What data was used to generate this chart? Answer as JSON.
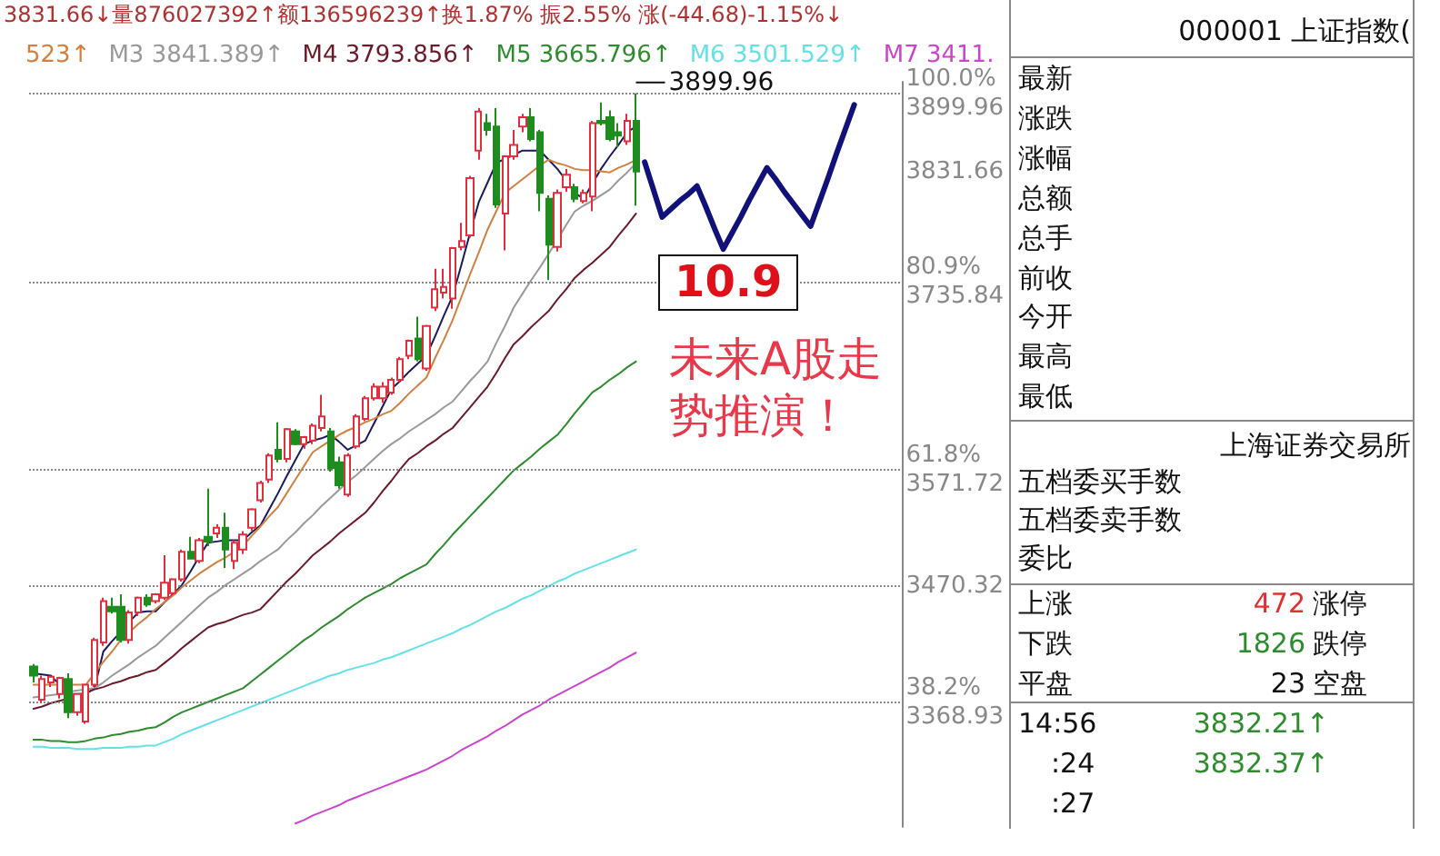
{
  "chart_data": [
    {
      "type": "candlestick",
      "subtitle": "3831.66↓量876027392↑额136596239↑换1.87% 振2.55% 涨(-44.68)-1.15%↓",
      "categories": [
        null,
        null,
        null,
        null,
        null,
        null,
        null,
        null,
        null,
        null,
        null,
        null,
        null,
        null,
        null,
        null,
        null,
        null,
        null,
        null,
        null,
        null,
        null,
        null,
        null,
        null,
        null,
        null,
        null,
        null,
        null,
        null,
        null,
        null,
        null,
        null,
        null,
        null,
        null,
        null,
        null,
        null,
        null,
        null,
        null,
        null,
        null,
        null,
        null,
        null,
        null,
        null,
        null,
        null,
        null,
        null,
        null,
        null,
        null,
        null,
        null,
        null,
        null,
        null,
        null,
        null,
        null,
        null,
        null,
        null,
        null,
        null,
        null,
        null,
        null,
        null,
        null,
        null,
        null,
        null,
        null,
        null,
        null,
        null,
        null,
        null,
        null,
        null,
        null,
        null,
        null,
        null,
        null,
        null,
        null,
        null,
        null,
        null,
        null,
        null
      ],
      "ohlc": [
        [
          3400,
          3402,
          3386,
          3392
        ],
        [
          3371,
          3392,
          3368,
          3389
        ],
        [
          3386,
          3392,
          3382,
          3391
        ],
        [
          3376,
          3391,
          3372,
          3390
        ],
        [
          3389,
          3394,
          3355,
          3360
        ],
        [
          3360,
          3376,
          3357,
          3376
        ],
        [
          3352,
          3384,
          3350,
          3384
        ],
        [
          3384,
          3425,
          3382,
          3423
        ],
        [
          3421,
          3460,
          3418,
          3457
        ],
        [
          3452,
          3460,
          3446,
          3448
        ],
        [
          3452,
          3463,
          3421,
          3423
        ],
        [
          3423,
          3449,
          3420,
          3447
        ],
        [
          3447,
          3461,
          3444,
          3460
        ],
        [
          3460,
          3463,
          3452,
          3454
        ],
        [
          3457,
          3464,
          3455,
          3463
        ],
        [
          3460,
          3497,
          3458,
          3473
        ],
        [
          3464,
          3477,
          3462,
          3476
        ],
        [
          3476,
          3502,
          3474,
          3500
        ],
        [
          3500,
          3513,
          3494,
          3494
        ],
        [
          3492,
          3512,
          3490,
          3510
        ],
        [
          3513,
          3555,
          3505,
          3509
        ],
        [
          3516,
          3524,
          3512,
          3521
        ],
        [
          3521,
          3534,
          3486,
          3502
        ],
        [
          3492,
          3510,
          3485,
          3508
        ],
        [
          3502,
          3518,
          3498,
          3515
        ],
        [
          3521,
          3538,
          3518,
          3537
        ],
        [
          3545,
          3562,
          3543,
          3560
        ],
        [
          3563,
          3586,
          3560,
          3584
        ],
        [
          3589,
          3613,
          3578,
          3581
        ],
        [
          3581,
          3608,
          3578,
          3607
        ],
        [
          3605,
          3607,
          3593,
          3594
        ],
        [
          3594,
          3601,
          3590,
          3600
        ],
        [
          3597,
          3612,
          3594,
          3610
        ],
        [
          3608,
          3637,
          3605,
          3618
        ],
        [
          3605,
          3608,
          3570,
          3573
        ],
        [
          3578,
          3583,
          3555,
          3558
        ],
        [
          3550,
          3586,
          3548,
          3584
        ],
        [
          3592,
          3620,
          3590,
          3618
        ],
        [
          3616,
          3636,
          3614,
          3634
        ],
        [
          3634,
          3647,
          3632,
          3644
        ],
        [
          3634,
          3648,
          3630,
          3644
        ],
        [
          3639,
          3652,
          3637,
          3650
        ],
        [
          3650,
          3670,
          3648,
          3668
        ],
        [
          3671,
          3685,
          3668,
          3684
        ],
        [
          3686,
          3705,
          3666,
          3668
        ],
        [
          3660,
          3698,
          3658,
          3697
        ],
        [
          3713,
          3747,
          3710,
          3729
        ],
        [
          3726,
          3747,
          3721,
          3731
        ],
        [
          3721,
          3766,
          3712,
          3765
        ],
        [
          3766,
          3787,
          3763,
          3771
        ],
        [
          3776,
          3828,
          3774,
          3826
        ],
        [
          3850,
          3887,
          3842,
          3884
        ],
        [
          3874,
          3882,
          3863,
          3868
        ],
        [
          3871,
          3887,
          3800,
          3803
        ],
        [
          3795,
          3846,
          3763,
          3845
        ],
        [
          3845,
          3868,
          3842,
          3855
        ],
        [
          3871,
          3882,
          3866,
          3879
        ],
        [
          3879,
          3887,
          3858,
          3860
        ],
        [
          3866,
          3868,
          3797,
          3813
        ],
        [
          3808,
          3811,
          3737,
          3768
        ],
        [
          3766,
          3816,
          3762,
          3813
        ],
        [
          3818,
          3834,
          3814,
          3829
        ],
        [
          3818,
          3821,
          3805,
          3808
        ],
        [
          3806,
          3816,
          3804,
          3813
        ],
        [
          3810,
          3876,
          3797,
          3874
        ],
        [
          3876,
          3892,
          3872,
          3874
        ],
        [
          3879,
          3885,
          3858,
          3860
        ],
        [
          3866,
          3874,
          3853,
          3863
        ],
        [
          3858,
          3882,
          3855,
          3876
        ],
        [
          3876,
          3899.96,
          3802,
          3831.66
        ],
        null,
        null,
        null,
        null,
        null,
        null,
        null,
        null,
        null,
        null,
        null,
        null,
        null,
        null,
        null,
        null,
        null,
        null,
        null,
        null,
        null,
        null,
        null,
        null,
        null,
        null,
        null,
        null,
        null,
        null
      ],
      "series": [
        {
          "type": "line",
          "color": "#1a1a5e",
          "values": [
            3394,
            3393,
            3392,
            3384,
            3376,
            3376,
            3376,
            3381,
            3413,
            3422,
            3430,
            3439,
            3447,
            3448,
            3448,
            3456,
            3463,
            3471,
            3483,
            3496,
            3508,
            3509,
            3510,
            3510,
            3510,
            3517,
            3523,
            3537,
            3551,
            3566,
            3580,
            3594,
            3597,
            3599,
            3602,
            3596,
            3589,
            3593,
            3597,
            3612,
            3627,
            3642,
            3649,
            3657,
            3664,
            3671,
            3688,
            3706,
            3723,
            3750,
            3778,
            3805,
            3822,
            3839,
            3843,
            3846,
            3850,
            3850,
            3850,
            3842,
            3834,
            3824,
            3813,
            3808,
            3821,
            3834,
            3845,
            3855,
            3866,
            3871,
            null,
            null,
            null,
            null,
            null,
            null,
            null,
            null,
            null,
            null,
            null,
            null,
            null,
            null,
            null,
            null,
            null,
            null,
            null,
            null,
            null,
            null,
            null,
            null,
            null,
            null,
            null,
            null,
            null,
            null
          ]
        },
        {
          "type": "line",
          "name": "523↑",
          "color": "#d08040",
          "values": [
            3384,
            3384,
            3384,
            3384,
            3384,
            3384,
            3384,
            3394,
            3404,
            3413,
            3423,
            3430,
            3437,
            3443,
            3450,
            3456,
            3462,
            3469,
            3475,
            3481,
            3486,
            3491,
            3495,
            3500,
            3505,
            3514,
            3522,
            3531,
            3539,
            3551,
            3563,
            3575,
            3587,
            3592,
            3597,
            3602,
            3606,
            3609,
            3613,
            3616,
            3620,
            3623,
            3630,
            3638,
            3645,
            3652,
            3669,
            3685,
            3702,
            3722,
            3742,
            3761,
            3781,
            3797,
            3813,
            3819,
            3825,
            3831,
            3837,
            3842,
            3839,
            3837,
            3834,
            3833,
            3833,
            3832,
            3831,
            3835,
            3838,
            3842,
            null,
            null,
            null,
            null,
            null,
            null,
            null,
            null,
            null,
            null,
            null,
            null,
            null,
            null,
            null,
            null,
            null,
            null,
            null,
            null,
            null,
            null,
            null,
            null,
            null,
            null,
            null,
            null,
            null,
            null
          ]
        },
        {
          "type": "line",
          "name": "M3 3841.389↑",
          "color": "#999999",
          "values": [
            3373,
            3374,
            3375,
            3376,
            3378,
            3379,
            3380,
            3381,
            3386,
            3392,
            3397,
            3402,
            3408,
            3413,
            3418,
            3425,
            3432,
            3439,
            3446,
            3453,
            3460,
            3465,
            3471,
            3476,
            3481,
            3486,
            3492,
            3497,
            3502,
            3510,
            3517,
            3525,
            3532,
            3540,
            3547,
            3554,
            3561,
            3567,
            3574,
            3581,
            3588,
            3594,
            3599,
            3605,
            3610,
            3615,
            3620,
            3626,
            3631,
            3640,
            3649,
            3657,
            3666,
            3682,
            3697,
            3713,
            3725,
            3737,
            3748,
            3760,
            3772,
            3785,
            3797,
            3802,
            3806,
            3811,
            3816,
            3824,
            3831,
            3839,
            null,
            null,
            null,
            null,
            null,
            null,
            null,
            null,
            null,
            null,
            null,
            null,
            null,
            null,
            null,
            null,
            null,
            null,
            null,
            null,
            null,
            null,
            null,
            null,
            null,
            null,
            null,
            null,
            null,
            null
          ]
        },
        {
          "type": "line",
          "name": "M4 3793.856↑",
          "color": "#6b1a2a",
          "values": [
            3363,
            3365,
            3368,
            3370,
            3372,
            3375,
            3377,
            3380,
            3382,
            3385,
            3387,
            3390,
            3392,
            3395,
            3397,
            3403,
            3409,
            3416,
            3422,
            3428,
            3434,
            3437,
            3439,
            3442,
            3445,
            3447,
            3450,
            3458,
            3466,
            3474,
            3481,
            3489,
            3497,
            3503,
            3509,
            3516,
            3522,
            3528,
            3534,
            3543,
            3553,
            3562,
            3572,
            3581,
            3586,
            3592,
            3597,
            3603,
            3608,
            3617,
            3626,
            3635,
            3644,
            3656,
            3669,
            3681,
            3688,
            3696,
            3703,
            3710,
            3720,
            3729,
            3739,
            3746,
            3752,
            3759,
            3766,
            3776,
            3785,
            3795,
            null,
            null,
            null,
            null,
            null,
            null,
            null,
            null,
            null,
            null,
            null,
            null,
            null,
            null,
            null,
            null,
            null,
            null,
            null,
            null,
            null,
            null,
            null,
            null,
            null,
            null,
            null,
            null,
            null,
            null
          ]
        },
        {
          "type": "line",
          "name": "M5 3665.796↑",
          "color": "#2e8b2e",
          "values": [
            3336,
            3336,
            3335,
            3335,
            3334,
            3334,
            3335,
            3337,
            3338,
            3340,
            3341,
            3343,
            3344,
            3346,
            3347,
            3351,
            3356,
            3360,
            3363,
            3366,
            3369,
            3372,
            3375,
            3378,
            3381,
            3387,
            3393,
            3399,
            3405,
            3411,
            3417,
            3423,
            3428,
            3434,
            3439,
            3444,
            3450,
            3455,
            3460,
            3464,
            3468,
            3472,
            3477,
            3481,
            3485,
            3489,
            3498,
            3506,
            3515,
            3523,
            3531,
            3539,
            3547,
            3555,
            3563,
            3571,
            3577,
            3583,
            3590,
            3596,
            3602,
            3611,
            3621,
            3630,
            3639,
            3644,
            3650,
            3655,
            3661,
            3666,
            null,
            null,
            null,
            null,
            null,
            null,
            null,
            null,
            null,
            null,
            null,
            null,
            null,
            null,
            null,
            null,
            null,
            null,
            null,
            null,
            null,
            null,
            null,
            null,
            null,
            null,
            null,
            null,
            null,
            null
          ]
        },
        {
          "type": "line",
          "name": "M6 3501.529↑",
          "color": "#66e0e8",
          "values": [
            3330,
            3330,
            3329,
            3329,
            3329,
            3328,
            3328,
            3328,
            3329,
            3329,
            3329,
            3330,
            3330,
            3331,
            3331,
            3334,
            3337,
            3341,
            3344,
            3347,
            3350,
            3353,
            3356,
            3359,
            3362,
            3365,
            3368,
            3371,
            3374,
            3377,
            3380,
            3383,
            3386,
            3389,
            3392,
            3394,
            3397,
            3399,
            3401,
            3403,
            3406,
            3408,
            3411,
            3414,
            3417,
            3420,
            3423,
            3426,
            3429,
            3433,
            3436,
            3440,
            3444,
            3448,
            3451,
            3455,
            3459,
            3462,
            3466,
            3470,
            3474,
            3477,
            3481,
            3484,
            3487,
            3490,
            3493,
            3496,
            3499,
            3502,
            null,
            null,
            null,
            null,
            null,
            null,
            null,
            null,
            null,
            null,
            null,
            null,
            null,
            null,
            null,
            null,
            null,
            null,
            null,
            null,
            null,
            null,
            null,
            null,
            null,
            null,
            null,
            null,
            null,
            null
          ]
        },
        {
          "type": "line",
          "name": "M7 3411.",
          "color": "#cc44cc",
          "values": [
            null,
            null,
            null,
            null,
            null,
            null,
            null,
            null,
            null,
            null,
            null,
            null,
            null,
            null,
            null,
            null,
            null,
            null,
            null,
            null,
            null,
            null,
            null,
            null,
            null,
            null,
            null,
            null,
            null,
            null,
            3263,
            3266,
            3270,
            3273,
            3276,
            3279,
            3283,
            3286,
            3289,
            3292,
            3295,
            3298,
            3301,
            3304,
            3307,
            3310,
            3314,
            3318,
            3322,
            3327,
            3331,
            3335,
            3339,
            3344,
            3348,
            3353,
            3358,
            3362,
            3366,
            3371,
            3375,
            3379,
            3383,
            3387,
            3391,
            3395,
            3399,
            3404,
            3408,
            3412,
            null,
            null,
            null,
            null,
            null,
            null,
            null,
            null,
            null,
            null,
            null,
            null,
            null,
            null,
            null,
            null,
            null,
            null,
            null,
            null,
            null,
            null,
            null,
            null,
            null,
            null,
            null,
            null,
            null,
            null
          ]
        },
        {
          "type": "line",
          "color": "#10127a",
          "values": [
            null,
            null,
            null,
            null,
            null,
            null,
            null,
            null,
            null,
            null,
            null,
            null,
            null,
            null,
            null,
            null,
            null,
            null,
            null,
            null,
            null,
            null,
            null,
            null,
            null,
            null,
            null,
            null,
            null,
            null,
            null,
            null,
            null,
            null,
            null,
            null,
            null,
            null,
            null,
            null,
            null,
            null,
            null,
            null,
            null,
            null,
            null,
            null,
            null,
            null,
            null,
            null,
            null,
            null,
            null,
            null,
            null,
            null,
            null,
            null,
            null,
            null,
            null,
            null,
            null,
            null,
            null,
            null,
            null,
            null,
            3840,
            3816,
            3792,
            3799,
            3806,
            3812,
            3819,
            3801,
            3782,
            3764,
            3778,
            3792,
            3807,
            3821,
            3835,
            3825,
            3814,
            3804,
            3794,
            3784,
            3805,
            3826,
            3848,
            3869,
            3890,
            null,
            null,
            null,
            null,
            null
          ]
        }
      ],
      "ylim": [
        3260,
        3910
      ],
      "yticks": [
        {
          "value": 3899.96,
          "label": "100.0%\n3899.96"
        },
        3831.66,
        {
          "value": 3735.84,
          "label": "80.9%\n3735.84"
        },
        {
          "value": 3571.72,
          "label": "61.8%\n3571.72"
        },
        3470.32,
        {
          "value": 3368.93,
          "label": "38.2%\n3368.93"
        }
      ],
      "tick_labels": "y",
      "ref_lines": [
        {
          "axis": "y",
          "value": 3899.96,
          "color": "#888888",
          "line_style": "dotted"
        },
        {
          "axis": "y",
          "value": 3735.84,
          "color": "#888888",
          "line_style": "dotted"
        },
        {
          "axis": "y",
          "value": 3571.72,
          "color": "#888888",
          "line_style": "dotted"
        },
        {
          "axis": "y",
          "value": 3470.32,
          "color": "#888888",
          "line_style": "dotted"
        },
        {
          "axis": "y",
          "value": 3368.93,
          "color": "#888888",
          "line_style": "dotted"
        }
      ],
      "annotations": [
        {
          "text": "3899.96",
          "y": 3899.96
        },
        "10.9",
        "未来A股走势推演！"
      ]
    },
    {
      "type": "other",
      "title": "000001 上证指数(",
      "annotations": [
        "最新",
        "涨跌",
        "涨幅",
        "总额",
        "总手",
        "前收",
        "今开",
        "最高",
        "最低",
        "上海证券交易所",
        "五档委买手数",
        "五档委卖手数",
        "委比",
        "上涨",
        "472",
        "涨停",
        "下跌",
        "1826",
        "跌停",
        "平盘",
        "23",
        "空盘",
        "14:56",
        "3832.21↑",
        ":24",
        "3832.37↑",
        ":27"
      ]
    }
  ]
}
